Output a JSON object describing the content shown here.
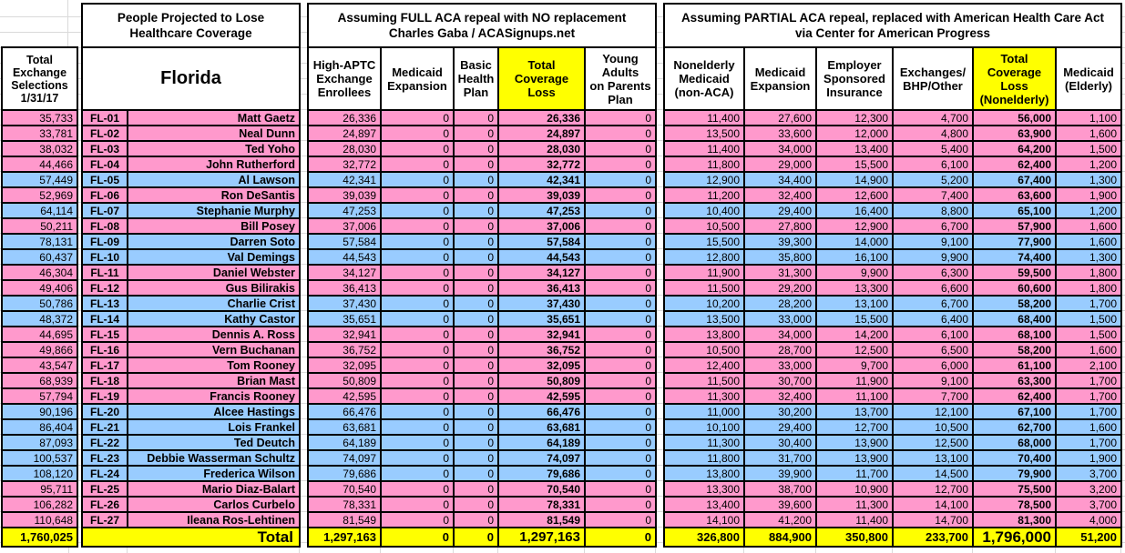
{
  "colors": {
    "pink": "#FF99CC",
    "blue": "#99CCFF",
    "yellow": "#FFFF00",
    "grid": "#DADADA"
  },
  "headers": {
    "exchange_selections": "Total\nExchange\nSelections\n1/31/17",
    "group_title": "People Projected to Lose\nHealthcare Coverage",
    "state": "Florida",
    "full_repeal_title": "Assuming FULL ACA repeal with NO replacement\nCharles Gaba / ACASignups.net",
    "partial_repeal_title": "Assuming PARTIAL ACA repeal, replaced with American Health Care Act\nvia Center for American Progress",
    "full_columns": [
      {
        "label": "High-APTC\nExchange\nEnrollees",
        "bg": "white"
      },
      {
        "label": "Medicaid\nExpansion",
        "bg": "white"
      },
      {
        "label": "Basic\nHealth\nPlan",
        "bg": "white"
      },
      {
        "label": "Total\nCoverage\nLoss",
        "bg": "yellow"
      },
      {
        "label": "Young\nAdults\non Parents\nPlan",
        "bg": "white"
      }
    ],
    "partial_columns": [
      {
        "label": "Nonelderly\nMedicaid\n(non-ACA)",
        "bg": "white"
      },
      {
        "label": "Medicaid\nExpansion",
        "bg": "white"
      },
      {
        "label": "Employer\nSponsored\nInsurance",
        "bg": "white"
      },
      {
        "label": "Exchanges/\nBHP/Other",
        "bg": "white"
      },
      {
        "label": "Total\nCoverage\nLoss\n(Nonelderly)",
        "bg": "yellow"
      },
      {
        "label": "Medicaid\n(Elderly)",
        "bg": "white"
      }
    ]
  },
  "rows": [
    {
      "district": "FL-01",
      "name": "Matt Gaetz",
      "color": "pink",
      "exchange_selections": "35,733",
      "full": [
        "26,336",
        "0",
        "0",
        "26,336",
        "0"
      ],
      "partial": [
        "11,400",
        "27,600",
        "12,300",
        "4,700",
        "56,000",
        "1,100"
      ]
    },
    {
      "district": "FL-02",
      "name": "Neal Dunn",
      "color": "pink",
      "exchange_selections": "33,781",
      "full": [
        "24,897",
        "0",
        "0",
        "24,897",
        "0"
      ],
      "partial": [
        "13,500",
        "33,600",
        "12,000",
        "4,800",
        "63,900",
        "1,600"
      ]
    },
    {
      "district": "FL-03",
      "name": "Ted Yoho",
      "color": "pink",
      "exchange_selections": "38,032",
      "full": [
        "28,030",
        "0",
        "0",
        "28,030",
        "0"
      ],
      "partial": [
        "11,400",
        "34,000",
        "13,400",
        "5,400",
        "64,200",
        "1,500"
      ]
    },
    {
      "district": "FL-04",
      "name": "John Rutherford",
      "color": "pink",
      "exchange_selections": "44,466",
      "full": [
        "32,772",
        "0",
        "0",
        "32,772",
        "0"
      ],
      "partial": [
        "11,800",
        "29,000",
        "15,500",
        "6,100",
        "62,400",
        "1,200"
      ]
    },
    {
      "district": "FL-05",
      "name": "Al Lawson",
      "color": "blue",
      "exchange_selections": "57,449",
      "full": [
        "42,341",
        "0",
        "0",
        "42,341",
        "0"
      ],
      "partial": [
        "12,900",
        "34,400",
        "14,900",
        "5,200",
        "67,400",
        "1,300"
      ]
    },
    {
      "district": "FL-06",
      "name": "Ron DeSantis",
      "color": "pink",
      "exchange_selections": "52,969",
      "full": [
        "39,039",
        "0",
        "0",
        "39,039",
        "0"
      ],
      "partial": [
        "11,200",
        "32,400",
        "12,600",
        "7,400",
        "63,600",
        "1,900"
      ]
    },
    {
      "district": "FL-07",
      "name": "Stephanie Murphy",
      "color": "blue",
      "exchange_selections": "64,114",
      "full": [
        "47,253",
        "0",
        "0",
        "47,253",
        "0"
      ],
      "partial": [
        "10,400",
        "29,400",
        "16,400",
        "8,800",
        "65,100",
        "1,200"
      ]
    },
    {
      "district": "FL-08",
      "name": "Bill Posey",
      "color": "pink",
      "exchange_selections": "50,211",
      "full": [
        "37,006",
        "0",
        "0",
        "37,006",
        "0"
      ],
      "partial": [
        "10,500",
        "27,800",
        "12,900",
        "6,700",
        "57,900",
        "1,600"
      ]
    },
    {
      "district": "FL-09",
      "name": "Darren Soto",
      "color": "blue",
      "exchange_selections": "78,131",
      "full": [
        "57,584",
        "0",
        "0",
        "57,584",
        "0"
      ],
      "partial": [
        "15,500",
        "39,300",
        "14,000",
        "9,100",
        "77,900",
        "1,600"
      ]
    },
    {
      "district": "FL-10",
      "name": "Val Demings",
      "color": "blue",
      "exchange_selections": "60,437",
      "full": [
        "44,543",
        "0",
        "0",
        "44,543",
        "0"
      ],
      "partial": [
        "12,800",
        "35,800",
        "16,100",
        "9,900",
        "74,400",
        "1,300"
      ]
    },
    {
      "district": "FL-11",
      "name": "Daniel Webster",
      "color": "pink",
      "exchange_selections": "46,304",
      "full": [
        "34,127",
        "0",
        "0",
        "34,127",
        "0"
      ],
      "partial": [
        "11,900",
        "31,300",
        "9,900",
        "6,300",
        "59,500",
        "1,800"
      ]
    },
    {
      "district": "FL-12",
      "name": "Gus Bilirakis",
      "color": "pink",
      "exchange_selections": "49,406",
      "full": [
        "36,413",
        "0",
        "0",
        "36,413",
        "0"
      ],
      "partial": [
        "11,500",
        "29,200",
        "13,300",
        "6,600",
        "60,600",
        "1,800"
      ]
    },
    {
      "district": "FL-13",
      "name": "Charlie Crist",
      "color": "blue",
      "exchange_selections": "50,786",
      "full": [
        "37,430",
        "0",
        "0",
        "37,430",
        "0"
      ],
      "partial": [
        "10,200",
        "28,200",
        "13,100",
        "6,700",
        "58,200",
        "1,700"
      ]
    },
    {
      "district": "FL-14",
      "name": "Kathy Castor",
      "color": "blue",
      "exchange_selections": "48,372",
      "full": [
        "35,651",
        "0",
        "0",
        "35,651",
        "0"
      ],
      "partial": [
        "13,500",
        "33,000",
        "15,500",
        "6,400",
        "68,400",
        "1,500"
      ]
    },
    {
      "district": "FL-15",
      "name": "Dennis A. Ross",
      "color": "pink",
      "exchange_selections": "44,695",
      "full": [
        "32,941",
        "0",
        "0",
        "32,941",
        "0"
      ],
      "partial": [
        "13,800",
        "34,000",
        "14,200",
        "6,100",
        "68,100",
        "1,500"
      ]
    },
    {
      "district": "FL-16",
      "name": "Vern Buchanan",
      "color": "pink",
      "exchange_selections": "49,866",
      "full": [
        "36,752",
        "0",
        "0",
        "36,752",
        "0"
      ],
      "partial": [
        "10,500",
        "28,700",
        "12,500",
        "6,500",
        "58,200",
        "1,600"
      ]
    },
    {
      "district": "FL-17",
      "name": "Tom Rooney",
      "color": "pink",
      "exchange_selections": "43,547",
      "full": [
        "32,095",
        "0",
        "0",
        "32,095",
        "0"
      ],
      "partial": [
        "12,400",
        "33,000",
        "9,700",
        "6,000",
        "61,100",
        "2,100"
      ]
    },
    {
      "district": "FL-18",
      "name": "Brian Mast",
      "color": "pink",
      "exchange_selections": "68,939",
      "full": [
        "50,809",
        "0",
        "0",
        "50,809",
        "0"
      ],
      "partial": [
        "11,500",
        "30,700",
        "11,900",
        "9,100",
        "63,300",
        "1,700"
      ]
    },
    {
      "district": "FL-19",
      "name": "Francis Rooney",
      "color": "pink",
      "exchange_selections": "57,794",
      "full": [
        "42,595",
        "0",
        "0",
        "42,595",
        "0"
      ],
      "partial": [
        "11,300",
        "32,400",
        "11,100",
        "7,700",
        "62,400",
        "1,700"
      ]
    },
    {
      "district": "FL-20",
      "name": "Alcee Hastings",
      "color": "blue",
      "exchange_selections": "90,196",
      "full": [
        "66,476",
        "0",
        "0",
        "66,476",
        "0"
      ],
      "partial": [
        "11,000",
        "30,200",
        "13,700",
        "12,100",
        "67,100",
        "1,700"
      ]
    },
    {
      "district": "FL-21",
      "name": "Lois Frankel",
      "color": "blue",
      "exchange_selections": "86,404",
      "full": [
        "63,681",
        "0",
        "0",
        "63,681",
        "0"
      ],
      "partial": [
        "10,100",
        "29,400",
        "12,700",
        "10,500",
        "62,700",
        "1,600"
      ]
    },
    {
      "district": "FL-22",
      "name": "Ted Deutch",
      "color": "blue",
      "exchange_selections": "87,093",
      "full": [
        "64,189",
        "0",
        "0",
        "64,189",
        "0"
      ],
      "partial": [
        "11,300",
        "30,400",
        "13,900",
        "12,500",
        "68,000",
        "1,700"
      ]
    },
    {
      "district": "FL-23",
      "name": "Debbie Wasserman Schultz",
      "color": "blue",
      "exchange_selections": "100,537",
      "full": [
        "74,097",
        "0",
        "0",
        "74,097",
        "0"
      ],
      "partial": [
        "11,800",
        "31,700",
        "13,900",
        "13,100",
        "70,400",
        "1,900"
      ]
    },
    {
      "district": "FL-24",
      "name": "Frederica Wilson",
      "color": "blue",
      "exchange_selections": "108,120",
      "full": [
        "79,686",
        "0",
        "0",
        "79,686",
        "0"
      ],
      "partial": [
        "13,800",
        "39,900",
        "11,700",
        "14,500",
        "79,900",
        "3,700"
      ]
    },
    {
      "district": "FL-25",
      "name": "Mario Diaz-Balart",
      "color": "pink",
      "exchange_selections": "95,711",
      "full": [
        "70,540",
        "0",
        "0",
        "70,540",
        "0"
      ],
      "partial": [
        "13,300",
        "38,700",
        "10,900",
        "12,700",
        "75,500",
        "3,200"
      ]
    },
    {
      "district": "FL-26",
      "name": "Carlos Curbelo",
      "color": "pink",
      "exchange_selections": "106,282",
      "full": [
        "78,331",
        "0",
        "0",
        "78,331",
        "0"
      ],
      "partial": [
        "13,400",
        "39,600",
        "11,300",
        "14,100",
        "78,500",
        "3,700"
      ]
    },
    {
      "district": "FL-27",
      "name": "Ileana Ros-Lehtinen",
      "color": "pink",
      "exchange_selections": "110,648",
      "full": [
        "81,549",
        "0",
        "0",
        "81,549",
        "0"
      ],
      "partial": [
        "14,100",
        "41,200",
        "11,400",
        "14,700",
        "81,300",
        "4,000"
      ]
    }
  ],
  "total_row": {
    "label": "Total",
    "exchange_selections": "1,760,025",
    "full": [
      "1,297,163",
      "0",
      "0",
      "1,297,163",
      "0"
    ],
    "partial": [
      "326,800",
      "884,900",
      "350,800",
      "233,700",
      "1,796,000",
      "51,200"
    ]
  }
}
